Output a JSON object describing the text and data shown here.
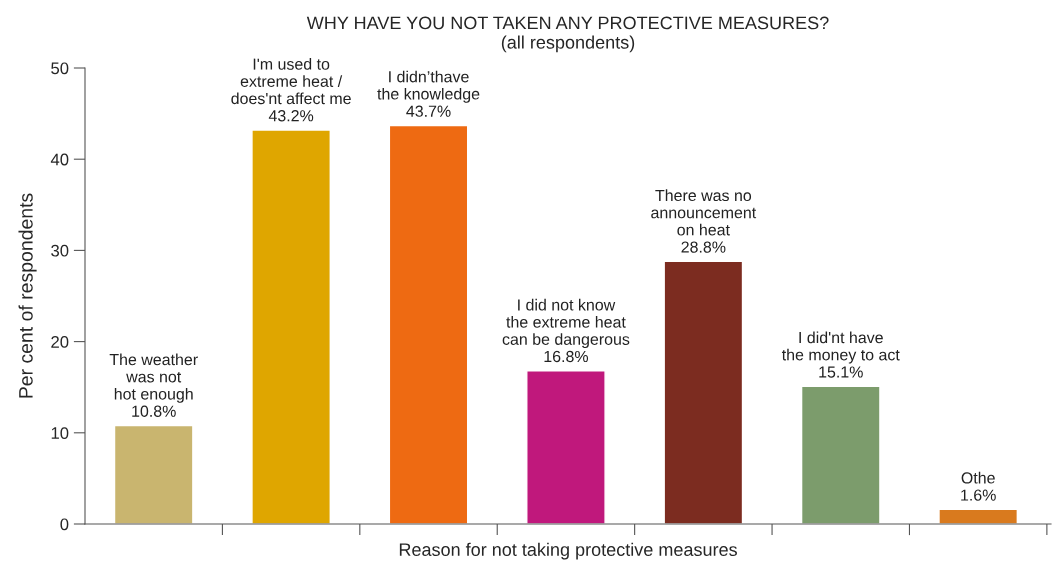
{
  "chart_data": {
    "type": "bar",
    "title": "WHY HAVE YOU NOT TAKEN ANY PROTECTIVE MEASURES?\n(all respondents)",
    "xlabel": "Reason for not taking protective measures",
    "ylabel": "Per cent of respondents",
    "categories": [
      "The weather\nwas not\nhot enough",
      "I'm used to\nextreme heat /\ndoes'nt affect me",
      "I didn’thave\nthe knowledge",
      "I did not know\nthe extreme heat\ncan be dangerous",
      "There was no\nannouncement\non heat",
      "I did'nt have\nthe money to act",
      "Othe"
    ],
    "values": [
      10.8,
      43.2,
      43.7,
      16.8,
      28.8,
      15.1,
      1.6
    ],
    "value_labels": [
      "10.8%",
      "43.2%",
      "43.7%",
      "16.8%",
      "28.8%",
      "15.1%",
      "1.6%"
    ],
    "colors": [
      "#c9b56f",
      "#dfa600",
      "#ee6a12",
      "#c0187c",
      "#7c2c20",
      "#7c9c6c",
      "#d97a1e"
    ],
    "ylim": [
      0,
      50
    ],
    "yticks": [
      0,
      10,
      20,
      30,
      40,
      50
    ],
    "grid": false,
    "legend": false
  }
}
